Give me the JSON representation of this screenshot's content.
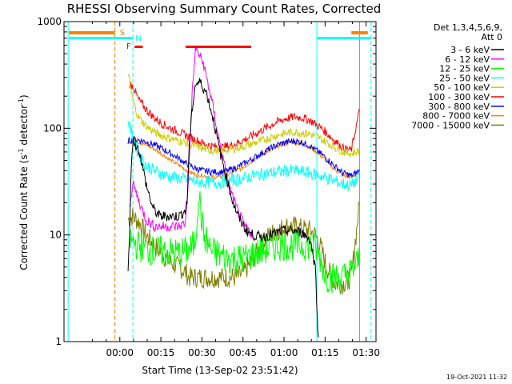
{
  "chart_data": {
    "type": "line",
    "title": "RHESSI Observing Summary Count Rates, Corrected",
    "xlabel": "Start Time (13-Sep-02 23:51:42)",
    "ylabel_text": "Corrected Count Rate (s",
    "ylabel_sup": "-1",
    "ylabel_text2": " detector",
    "ylabel_sup2": "-1",
    "ylabel_close": ")",
    "y_scale": "log",
    "ylim": [
      1,
      1000
    ],
    "xlim": [
      -0.2,
      1.7
    ],
    "x_unit": "hours since 23:51:42",
    "x_ticks": [
      {
        "x": 0.14,
        "label": "00:00"
      },
      {
        "x": 0.39,
        "label": "00:15"
      },
      {
        "x": 0.64,
        "label": "00:30"
      },
      {
        "x": 0.89,
        "label": "00:45"
      },
      {
        "x": 1.14,
        "label": "01:00"
      },
      {
        "x": 1.39,
        "label": "01:15"
      },
      {
        "x": 1.64,
        "label": "01:30"
      }
    ],
    "y_ticks": [
      {
        "y": 1,
        "label": "1"
      },
      {
        "y": 10,
        "label": "10"
      },
      {
        "y": 100,
        "label": "100"
      },
      {
        "y": 1000,
        "label": "1000"
      }
    ],
    "legend_header": [
      "Det 1,3,4,5,6,9,",
      "Att 0"
    ],
    "legend_position": "right",
    "timestamp": "19-Oct-2021 11:32",
    "markers": {
      "S": "S",
      "F": "F",
      "N": "N",
      "saa_color": "#ff7f00",
      "flare_color": "#ff0000",
      "night_color": "#00ffff",
      "saa": [
        [
          -0.17,
          0.11
        ],
        [
          1.55,
          1.65
        ]
      ],
      "flare_short": [
        0.23,
        0.28
      ],
      "flare_long": [
        0.54,
        0.94
      ],
      "night": [
        [
          -0.17,
          0.22
        ],
        [
          1.34,
          1.67
        ]
      ]
    },
    "vlines": [
      {
        "x": -0.175,
        "color": "#00ffff",
        "dash": false
      },
      {
        "x": 0.11,
        "color": "#ff7f00",
        "dash": true
      },
      {
        "x": 0.22,
        "color": "#00ffff",
        "dash": true
      },
      {
        "x": 1.34,
        "color": "#00ffff",
        "dash": false
      },
      {
        "x": 1.6,
        "color": "#ff7f00",
        "dash": false
      },
      {
        "x": 1.67,
        "color": "#00ffff",
        "dash": true
      }
    ],
    "series": [
      {
        "name": "3 - 6 keV",
        "color": "#000000",
        "noise": 0.05,
        "x": [
          0.19,
          0.2,
          0.21,
          0.22,
          0.26,
          0.3,
          0.34,
          0.38,
          0.42,
          0.46,
          0.5,
          0.54,
          0.55,
          0.56,
          0.58,
          0.6,
          0.63,
          0.67,
          0.71,
          0.75,
          0.79,
          0.83,
          0.87,
          0.91,
          0.95,
          1.0,
          1.05,
          1.1,
          1.15,
          1.2,
          1.25,
          1.3,
          1.33,
          1.35
        ],
        "y": [
          4.5,
          10,
          50,
          78,
          60,
          30,
          18,
          15,
          15,
          15,
          15,
          17,
          20,
          60,
          150,
          260,
          270,
          210,
          120,
          60,
          34,
          20,
          14,
          11,
          10,
          9.5,
          10,
          10.5,
          11,
          11,
          10.5,
          9,
          5,
          1
        ]
      },
      {
        "name": "6 - 12 keV",
        "color": "#ff00ff",
        "noise": 0.05,
        "x": [
          0.2,
          0.22,
          0.26,
          0.3,
          0.35,
          0.4,
          0.45,
          0.5,
          0.54,
          0.56,
          0.58,
          0.6,
          0.62,
          0.65,
          0.7,
          0.75,
          0.8,
          0.85,
          0.9,
          0.95
        ],
        "y": [
          20,
          30,
          20,
          14,
          12,
          12,
          12,
          12,
          13,
          40,
          200,
          550,
          500,
          400,
          180,
          70,
          30,
          18,
          12,
          10
        ]
      },
      {
        "name": "12 - 25 keV",
        "color": "#00ff00",
        "noise": 0.15,
        "x": [
          0.2,
          0.25,
          0.3,
          0.35,
          0.4,
          0.45,
          0.5,
          0.54,
          0.58,
          0.6,
          0.62,
          0.65,
          0.7,
          0.75,
          0.8,
          0.85,
          0.9,
          0.95,
          1.0,
          1.05,
          1.1,
          1.15,
          1.2,
          1.25,
          1.3,
          1.33,
          1.36,
          1.4,
          1.45,
          1.5,
          1.55,
          1.6
        ],
        "y": [
          9,
          8,
          7.5,
          7,
          7,
          6.8,
          6.8,
          7,
          7.5,
          9,
          25,
          10,
          7,
          6.5,
          6,
          6,
          6,
          6.5,
          7,
          7.5,
          8,
          8,
          8,
          8,
          8,
          7.5,
          6,
          4,
          4,
          4,
          4.5,
          6
        ]
      },
      {
        "name": "25 - 50 keV",
        "color": "#00ffff",
        "noise": 0.06,
        "x": [
          0.19,
          0.22,
          0.26,
          0.3,
          0.35,
          0.4,
          0.45,
          0.5,
          0.55,
          0.6,
          0.65,
          0.7,
          0.75,
          0.8,
          0.85,
          0.9,
          0.95,
          1.0,
          1.05,
          1.1,
          1.15,
          1.2,
          1.25,
          1.3,
          1.35,
          1.4,
          1.45,
          1.5,
          1.55,
          1.6
        ],
        "y": [
          120,
          80,
          55,
          45,
          40,
          37,
          35,
          34,
          33,
          32,
          31,
          31,
          31,
          32,
          33,
          34,
          36,
          37,
          38,
          39,
          40,
          40,
          39,
          38,
          36,
          34,
          32,
          30,
          29,
          35
        ]
      },
      {
        "name": "50 - 100 keV",
        "color": "#cccc00",
        "noise": 0.04,
        "x": [
          0.19,
          0.22,
          0.25,
          0.3,
          0.35,
          0.4,
          0.45,
          0.5,
          0.55,
          0.6,
          0.65,
          0.7,
          0.75,
          0.8,
          0.85,
          0.9,
          0.95,
          1.0,
          1.05,
          1.1,
          1.15,
          1.2,
          1.25,
          1.3,
          1.35,
          1.4,
          1.45,
          1.5,
          1.55,
          1.6
        ],
        "y": [
          330,
          180,
          130,
          105,
          92,
          85,
          80,
          76,
          72,
          68,
          64,
          62,
          62,
          63,
          65,
          68,
          72,
          76,
          81,
          86,
          90,
          92,
          91,
          88,
          82,
          74,
          66,
          60,
          58,
          62
        ]
      },
      {
        "name": "100 - 300 keV",
        "color": "#ff0000",
        "noise": 0.04,
        "x": [
          0.2,
          0.22,
          0.25,
          0.3,
          0.35,
          0.4,
          0.45,
          0.5,
          0.55,
          0.6,
          0.65,
          0.7,
          0.75,
          0.8,
          0.85,
          0.9,
          0.95,
          1.0,
          1.05,
          1.1,
          1.15,
          1.2,
          1.25,
          1.3,
          1.35,
          1.4,
          1.45,
          1.5,
          1.55,
          1.6
        ],
        "y": [
          260,
          250,
          190,
          150,
          125,
          110,
          100,
          92,
          85,
          78,
          72,
          68,
          66,
          68,
          72,
          78,
          86,
          95,
          105,
          115,
          123,
          128,
          126,
          118,
          105,
          90,
          76,
          65,
          62,
          150
        ]
      },
      {
        "name": "300 - 800 keV",
        "color": "#0000ff",
        "noise": 0.03,
        "x": [
          0.19,
          0.22,
          0.25,
          0.3,
          0.35,
          0.4,
          0.45,
          0.5,
          0.55,
          0.6,
          0.65,
          0.7,
          0.75,
          0.8,
          0.85,
          0.9,
          0.95,
          1.0,
          1.05,
          1.1,
          1.15,
          1.2,
          1.25,
          1.3,
          1.35,
          1.4,
          1.45,
          1.5,
          1.55,
          1.6
        ],
        "y": [
          76,
          78,
          78,
          75,
          70,
          64,
          58,
          52,
          46,
          42,
          40,
          39,
          39,
          40,
          43,
          47,
          52,
          58,
          64,
          70,
          74,
          76,
          74,
          68,
          60,
          52,
          44,
          38,
          36,
          40
        ]
      },
      {
        "name": "800 - 7000 keV",
        "color": "#ff7f00",
        "noise": 0.02,
        "x": [
          0.19,
          0.22,
          0.25,
          0.3,
          0.35,
          0.4,
          0.45,
          0.5,
          0.55,
          0.6,
          0.65,
          0.7,
          0.75,
          0.8,
          0.85,
          0.9,
          0.95,
          1.0,
          1.05,
          1.1,
          1.15,
          1.2,
          1.25,
          1.3,
          1.35,
          1.4,
          1.45,
          1.5,
          1.55,
          1.6
        ],
        "y": [
          74,
          76,
          75,
          70,
          64,
          57,
          50,
          45,
          40,
          37,
          36,
          35,
          35,
          37,
          40,
          44,
          50,
          56,
          62,
          68,
          72,
          74,
          72,
          66,
          58,
          49,
          41,
          36,
          35,
          38
        ]
      },
      {
        "name": "7000 - 15000 keV",
        "color": "#7f7f00",
        "noise": 0.1,
        "x": [
          0.19,
          0.22,
          0.26,
          0.3,
          0.35,
          0.4,
          0.45,
          0.5,
          0.54,
          0.56,
          0.6,
          0.65,
          0.7,
          0.75,
          0.8,
          0.85,
          0.9,
          0.95,
          1.0,
          1.05,
          1.1,
          1.15,
          1.2,
          1.25,
          1.3,
          1.33,
          1.36,
          1.4,
          1.45,
          1.5,
          1.55,
          1.6
        ],
        "y": [
          14,
          15,
          13,
          10,
          8,
          6.5,
          5.5,
          5,
          4.5,
          4,
          4,
          4,
          4,
          4,
          4,
          4,
          4.5,
          6,
          8,
          10,
          11,
          12,
          12,
          11.5,
          11,
          10,
          8,
          5,
          3.5,
          3.5,
          4,
          20
        ]
      }
    ]
  }
}
